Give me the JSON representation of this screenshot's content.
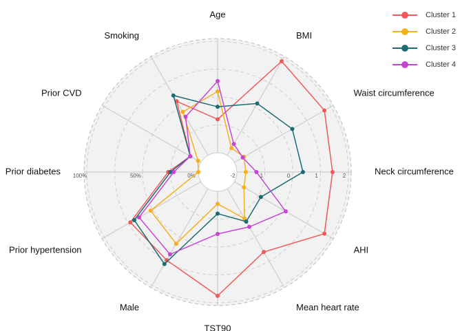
{
  "chart_data": {
    "type": "radar",
    "categories": [
      "Age",
      "BMI",
      "Waist circumference",
      "Neck circumference",
      "AHI",
      "Mean heart rate",
      "TST90",
      "Male",
      "Prior hypertension",
      "Prior diabetes",
      "Prior CVD",
      "Smoking"
    ],
    "scales": [
      "z",
      "z",
      "z",
      "z",
      "z",
      "z",
      "z",
      "pct",
      "pct",
      "pct",
      "pct",
      "pct"
    ],
    "zlim": [
      -2,
      2
    ],
    "zticks": [
      -2,
      -1,
      0,
      1,
      2
    ],
    "pctlim": [
      0,
      100
    ],
    "pctticks": [
      {
        "value": 0,
        "label": "0%"
      },
      {
        "value": 50,
        "label": "50%"
      },
      {
        "value": 100,
        "label": "100%"
      }
    ],
    "series": [
      {
        "name": "Cluster 1",
        "color": "#ee5a5a",
        "values": [
          -0.8,
          1.9,
          1.73,
          1.43,
          1.73,
          0.62,
          1.75,
          74,
          73,
          27,
          11,
          56
        ]
      },
      {
        "name": "Cluster 2",
        "color": "#f5b01e",
        "values": [
          0.2,
          -1.7,
          -1.6,
          -1.68,
          -1.6,
          -0.76,
          -1.55,
          57,
          52,
          0,
          3,
          45
        ]
      },
      {
        "name": "Cluster 3",
        "color": "#1a6b72",
        "values": [
          -0.35,
          0.15,
          0.4,
          0.37,
          -0.9,
          -0.64,
          -1.2,
          78,
          69,
          25,
          11,
          62
        ]
      },
      {
        "name": "Cluster 4",
        "color": "#c546d3",
        "values": [
          0.57,
          -1.53,
          -1.65,
          -1.3,
          0.13,
          -0.42,
          -0.47,
          68,
          64,
          22,
          11,
          40
        ]
      }
    ]
  }
}
